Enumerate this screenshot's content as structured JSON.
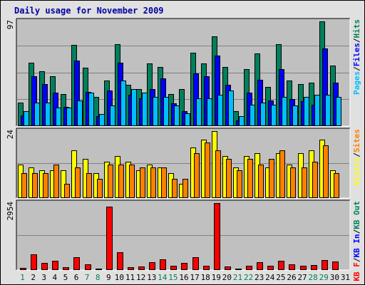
{
  "chart_data": {
    "type": "bar",
    "title": "Daily usage for November 2009",
    "categories": [
      "1",
      "2",
      "3",
      "4",
      "5",
      "6",
      "7",
      "8",
      "9",
      "10",
      "11",
      "12",
      "13",
      "14",
      "15",
      "16",
      "17",
      "18",
      "19",
      "20",
      "21",
      "22",
      "23",
      "24",
      "25",
      "26",
      "27",
      "28",
      "29",
      "30",
      "31"
    ],
    "weekend_days": [
      "1",
      "7",
      "8",
      "14",
      "15",
      "21",
      "22",
      "28",
      "29"
    ],
    "panels": [
      {
        "name": "hits-files-pages",
        "max_label": "97",
        "ylim": [
          0,
          97
        ],
        "legend": [
          {
            "label": "Pages",
            "color": "#00c0ff"
          },
          {
            "label": "Files",
            "color": "#0000ff"
          },
          {
            "label": "Hits",
            "color": "#00805c"
          }
        ],
        "series": [
          {
            "name": "Hits",
            "color": "#00805c",
            "values": [
              22,
              59,
              51,
              46,
              30,
              75,
              54,
              27,
              42,
              76,
              38,
              34,
              58,
              55,
              30,
              34,
              68,
              58,
              83,
              55,
              14,
              53,
              67,
              36,
              76,
              42,
              39,
              40,
              97,
              56,
              0
            ]
          },
          {
            "name": "Files",
            "color": "#0000ff",
            "values": [
              10,
              46,
              39,
              31,
              18,
              61,
              32,
              9,
              33,
              59,
              29,
              26,
              34,
              44,
              21,
              14,
              49,
              46,
              65,
              38,
              5,
              31,
              43,
              24,
              53,
              25,
              23,
              20,
              72,
              40,
              0
            ]
          },
          {
            "name": "Pages",
            "color": "#00c0ff",
            "values": [
              14,
              22,
              22,
              17,
              17,
              24,
              31,
              11,
              19,
              42,
              34,
              31,
              27,
              27,
              19,
              12,
              26,
              26,
              29,
              33,
              9,
              20,
              22,
              20,
              27,
              19,
              27,
              29,
              29,
              27,
              0
            ]
          }
        ]
      },
      {
        "name": "visits-sites",
        "max_label": "24",
        "ylim": [
          0,
          24
        ],
        "legend": [
          {
            "label": "Visits",
            "color": "#ffff00"
          },
          {
            "label": "Sites",
            "color": "#ff8000"
          }
        ],
        "series": [
          {
            "name": "Visits",
            "color": "#ffff00",
            "values": [
              12,
              11,
              10,
              10,
              10,
              17,
              14,
              9,
              13,
              15,
              13,
              10,
              12,
              11,
              9,
              5,
              18,
              21,
              24,
              15,
              11,
              15,
              16,
              11,
              16,
              12,
              16,
              17,
              21,
              10,
              0
            ]
          },
          {
            "name": "Sites",
            "color": "#ff8000",
            "values": [
              9,
              9,
              9,
              12,
              5,
              11,
              9,
              7,
              12,
              12,
              12,
              11,
              11,
              11,
              7,
              7,
              16,
              20,
              17,
              14,
              10,
              14,
              12,
              14,
              17,
              11,
              11,
              13,
              19,
              9,
              0
            ]
          }
        ]
      },
      {
        "name": "kbytes",
        "max_label": "2954",
        "ylim": [
          0,
          2954
        ],
        "legend": [
          {
            "label": "KB F",
            "color": "#ff0000"
          },
          {
            "label": "KB In",
            "color": "#0000ff"
          },
          {
            "label": "KB Out",
            "color": "#00805c"
          }
        ],
        "series": [
          {
            "name": "KB F",
            "color": "#ff0000",
            "values": [
              95,
              680,
              310,
              420,
              130,
              570,
              260,
              60,
              2800,
              800,
              130,
              160,
              360,
              480,
              190,
              300,
              580,
              190,
              2954,
              150,
              50,
              200,
              350,
              190,
              420,
              260,
              190,
              220,
              440,
              390,
              0
            ]
          }
        ]
      }
    ]
  }
}
